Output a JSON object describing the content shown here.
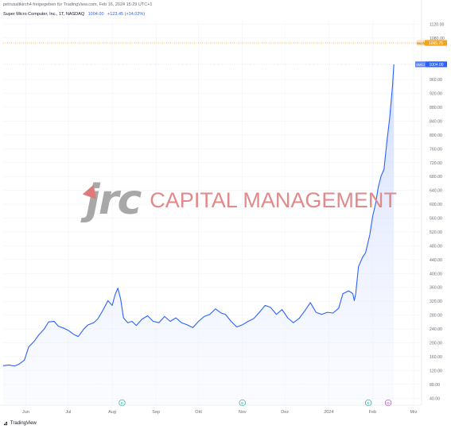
{
  "header": {
    "published": "petrusaltkirch4 freigegeben für TradingView.com, Feb 16, 2024 15:29 UTC+1"
  },
  "legend": {
    "symbol": "Super Micro Computer, Inc., 1T, NASDAQ",
    "value": "1004.00",
    "change": "+123.45 (+14.02%)"
  },
  "price_tags": {
    "orange_label": "Hoch",
    "orange_value": "1065.75",
    "blue_label": "SMCI",
    "blue_value": "1004.00"
  },
  "watermark": {
    "logo": "jrc",
    "text": "CAPITAL MANAGEMENT"
  },
  "footer": {
    "brand": "TradingView"
  },
  "event_markers": [
    {
      "x": "2023-08-08",
      "letter": "E"
    },
    {
      "x": "2023-11-01",
      "letter": "E"
    },
    {
      "x": "2024-01-29",
      "letter": "E"
    },
    {
      "x": "2024-02-12",
      "letter": "D"
    }
  ],
  "colors": {
    "line": "#2962ff",
    "area_top": "#c9d6ff",
    "orange": "#f7a21b",
    "blue_tag": "#2962ff",
    "earnings": "#26a69a",
    "dividend": "#ab47bc"
  },
  "chart_data": {
    "type": "area",
    "title": "",
    "xlabel": "",
    "ylabel": "",
    "x_tick_labels": [
      "Jun",
      "Jul",
      "Aug",
      "Sep",
      "Okt",
      "Nov",
      "Dez",
      "2024",
      "Feb",
      "Mrz"
    ],
    "y_tick_labels": [
      "40.00",
      "80.00",
      "120.00",
      "160.00",
      "200.00",
      "240.00",
      "280.00",
      "320.00",
      "360.00",
      "400.00",
      "440.00",
      "480.00",
      "520.00",
      "560.00",
      "600.00",
      "640.00",
      "680.00",
      "720.00",
      "760.00",
      "800.00",
      "840.00",
      "880.00",
      "920.00",
      "960.00",
      "1080.00",
      "1120.00"
    ],
    "ylim": [
      20,
      1130
    ],
    "grid": true,
    "legend": "none",
    "series": [
      {
        "values": [
          [
            "2023-05-16",
            134
          ],
          [
            "2023-05-20",
            136
          ],
          [
            "2023-05-24",
            133
          ],
          [
            "2023-05-27",
            138
          ],
          [
            "2023-05-31",
            150
          ],
          [
            "2023-06-03",
            188
          ],
          [
            "2023-06-07",
            205
          ],
          [
            "2023-06-10",
            222
          ],
          [
            "2023-06-14",
            240
          ],
          [
            "2023-06-17",
            260
          ],
          [
            "2023-06-21",
            262
          ],
          [
            "2023-06-24",
            248
          ],
          [
            "2023-06-28",
            242
          ],
          [
            "2023-07-01",
            236
          ],
          [
            "2023-07-05",
            224
          ],
          [
            "2023-07-08",
            218
          ],
          [
            "2023-07-12",
            240
          ],
          [
            "2023-07-15",
            252
          ],
          [
            "2023-07-19",
            258
          ],
          [
            "2023-07-22",
            270
          ],
          [
            "2023-07-26",
            298
          ],
          [
            "2023-07-29",
            322
          ],
          [
            "2023-08-01",
            308
          ],
          [
            "2023-08-03",
            338
          ],
          [
            "2023-08-05",
            358
          ],
          [
            "2023-08-07",
            326
          ],
          [
            "2023-08-09",
            272
          ],
          [
            "2023-08-12",
            258
          ],
          [
            "2023-08-15",
            262
          ],
          [
            "2023-08-18",
            250
          ],
          [
            "2023-08-22",
            268
          ],
          [
            "2023-08-26",
            278
          ],
          [
            "2023-08-30",
            262
          ],
          [
            "2023-09-03",
            258
          ],
          [
            "2023-09-07",
            276
          ],
          [
            "2023-09-11",
            262
          ],
          [
            "2023-09-15",
            272
          ],
          [
            "2023-09-19",
            258
          ],
          [
            "2023-09-23",
            252
          ],
          [
            "2023-09-27",
            244
          ],
          [
            "2023-10-01",
            262
          ],
          [
            "2023-10-05",
            276
          ],
          [
            "2023-10-09",
            282
          ],
          [
            "2023-10-13",
            298
          ],
          [
            "2023-10-17",
            286
          ],
          [
            "2023-10-20",
            282
          ],
          [
            "2023-10-24",
            262
          ],
          [
            "2023-10-28",
            246
          ],
          [
            "2023-11-01",
            252
          ],
          [
            "2023-11-05",
            262
          ],
          [
            "2023-11-09",
            270
          ],
          [
            "2023-11-13",
            288
          ],
          [
            "2023-11-17",
            308
          ],
          [
            "2023-11-21",
            302
          ],
          [
            "2023-11-25",
            282
          ],
          [
            "2023-11-29",
            296
          ],
          [
            "2023-12-03",
            272
          ],
          [
            "2023-12-07",
            258
          ],
          [
            "2023-12-11",
            270
          ],
          [
            "2023-12-15",
            292
          ],
          [
            "2023-12-19",
            316
          ],
          [
            "2023-12-23",
            288
          ],
          [
            "2023-12-27",
            282
          ],
          [
            "2023-12-31",
            288
          ],
          [
            "2024-01-04",
            286
          ],
          [
            "2024-01-08",
            300
          ],
          [
            "2024-01-11",
            342
          ],
          [
            "2024-01-15",
            350
          ],
          [
            "2024-01-18",
            342
          ],
          [
            "2024-01-19",
            322
          ],
          [
            "2024-01-20",
            340
          ],
          [
            "2024-01-22",
            420
          ],
          [
            "2024-01-25",
            448
          ],
          [
            "2024-01-27",
            460
          ],
          [
            "2024-01-30",
            512
          ],
          [
            "2024-02-01",
            565
          ],
          [
            "2024-02-03",
            600
          ],
          [
            "2024-02-05",
            650
          ],
          [
            "2024-02-07",
            682
          ],
          [
            "2024-02-09",
            700
          ],
          [
            "2024-02-11",
            778
          ],
          [
            "2024-02-13",
            848
          ],
          [
            "2024-02-15",
            940
          ],
          [
            "2024-02-16",
            1004
          ]
        ]
      }
    ],
    "reference_lines": [
      {
        "label": "Hoch",
        "value": 1065.75,
        "style": "dotted",
        "color": "orange"
      }
    ]
  }
}
